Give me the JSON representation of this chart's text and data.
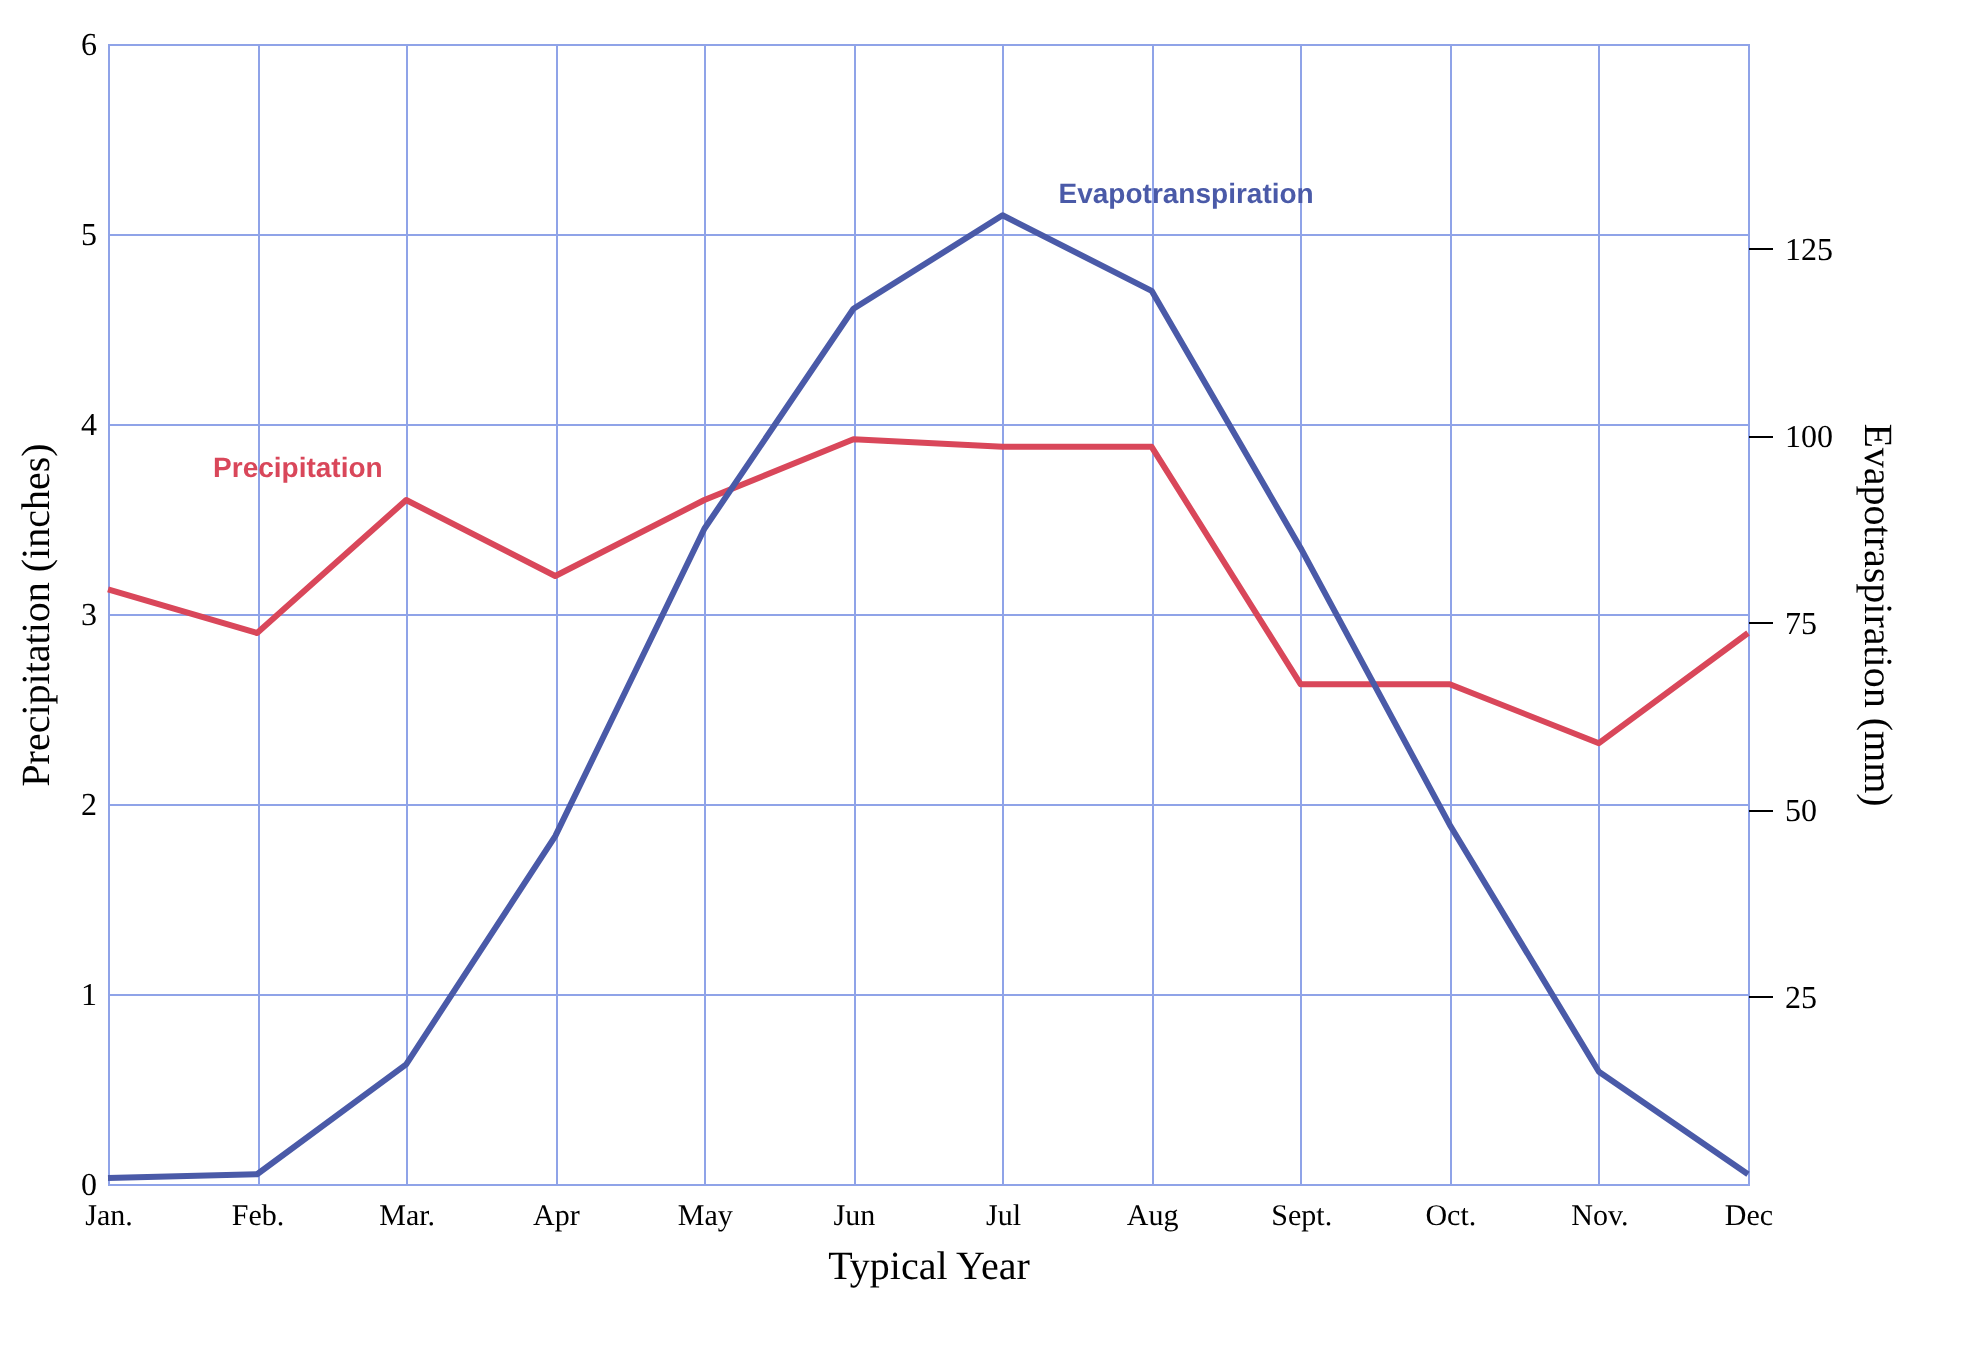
{
  "chart_data": {
    "type": "line",
    "xlabel": "Typical  Year",
    "ylabel": "Precipitation (inches)",
    "y2label": "Evapotraspiration (mm)",
    "categories": [
      "Jan.",
      "Feb.",
      "Mar.",
      "Apr",
      "May",
      "Jun",
      "Jul",
      "Aug",
      "Sept.",
      "Oct.",
      "Nov.",
      "Dec"
    ],
    "series": [
      {
        "name": "Precipitation",
        "color": "#d9475a",
        "values": [
          3.13,
          2.9,
          3.6,
          3.2,
          3.6,
          3.92,
          3.88,
          3.88,
          2.63,
          2.63,
          2.32,
          2.9
        ]
      },
      {
        "name": "Evapotranspiration",
        "color": "#4a5aa8",
        "axis": "y2",
        "values": [
          0.8,
          1.3,
          16,
          46.5,
          87.6,
          117,
          129.5,
          119.4,
          85,
          48,
          15,
          1.3
        ]
      }
    ],
    "ylim": [
      0,
      6
    ],
    "yticks": [
      0,
      1,
      2,
      3,
      4,
      5,
      6
    ],
    "y2lim": [
      0,
      152.4
    ],
    "y2ticks": [
      25,
      50,
      75,
      100,
      125
    ],
    "grid": true,
    "legend": false,
    "marker": "none",
    "line_style": "solid"
  }
}
